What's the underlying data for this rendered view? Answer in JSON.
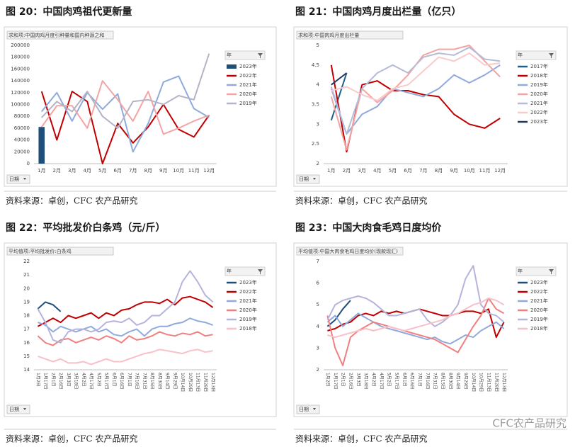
{
  "chart_data": [
    {
      "type": "line",
      "title": "图 20：中国肉鸡祖代更新量",
      "subtitle": "求和项:中国肉鸡月度引种量和国内种源之和",
      "legend_title": "年",
      "filter": "日期",
      "source": "资料来源：卓创，CFC 农产品研究",
      "categories": [
        "1月",
        "2月",
        "3月",
        "4月",
        "5月",
        "6月",
        "7月",
        "8月",
        "9月",
        "10月",
        "11月",
        "12月"
      ],
      "ylim": [
        0,
        200000
      ],
      "yticks": [
        0,
        20000,
        40000,
        60000,
        80000,
        100000,
        120000,
        140000,
        160000,
        180000,
        200000
      ],
      "grid": false,
      "series": [
        {
          "name": "2023年",
          "color": "#1f4e79",
          "mark": "bar",
          "values": [
            62000,
            null,
            null,
            null,
            null,
            null,
            null,
            null,
            null,
            null,
            null,
            null
          ]
        },
        {
          "name": "2022年",
          "color": "#c00000",
          "values": [
            122000,
            40000,
            122000,
            105000,
            0,
            68000,
            35000,
            62000,
            100000,
            58000,
            45000,
            82000
          ]
        },
        {
          "name": "2021年",
          "color": "#8faadc",
          "values": [
            88000,
            120000,
            72000,
            120000,
            92000,
            118000,
            20000,
            68000,
            138000,
            148000,
            93000,
            78000
          ]
        },
        {
          "name": "2020年",
          "color": "#f4a4a4",
          "values": [
            62000,
            98000,
            98000,
            60000,
            140000,
            108000,
            72000,
            122000,
            50000,
            60000,
            72000,
            82000
          ]
        },
        {
          "name": "2019年",
          "color": "#b4b4c8",
          "values": [
            78000,
            105000,
            88000,
            122000,
            80000,
            60000,
            105000,
            108000,
            100000,
            115000,
            108000,
            186000
          ]
        }
      ]
    },
    {
      "type": "line",
      "title": "图 21：中国肉鸡月度出栏量（亿只）",
      "subtitle": "求和项:中国肉鸡月度出栏量",
      "legend_title": "年",
      "filter": "日期",
      "source": "资料来源：卓创，CFC 农产品研究",
      "categories": [
        "1月",
        "2月",
        "3月",
        "4月",
        "5月",
        "6月",
        "7月",
        "8月",
        "9月",
        "10月",
        "11月",
        "12月"
      ],
      "ylim": [
        2,
        5
      ],
      "yticks": [
        2,
        2.5,
        3,
        3.5,
        4,
        4.5,
        5
      ],
      "grid": false,
      "series": [
        {
          "name": "2017年",
          "color": "#1f5f8b",
          "values": [
            3.1,
            4.3,
            null,
            null,
            null,
            null,
            null,
            null,
            null,
            null,
            null,
            null
          ]
        },
        {
          "name": "2018年",
          "color": "#c00000",
          "values": [
            4.5,
            2.3,
            4.0,
            4.1,
            3.85,
            3.85,
            3.75,
            3.7,
            3.25,
            3.0,
            2.9,
            3.15
          ]
        },
        {
          "name": "2019年",
          "color": "#8faadc",
          "values": [
            3.9,
            2.75,
            3.25,
            3.45,
            3.9,
            3.8,
            3.7,
            3.9,
            4.25,
            4.05,
            4.25,
            4.5
          ]
        },
        {
          "name": "2020年",
          "color": "#f4a4a4",
          "values": [
            3.7,
            2.35,
            3.9,
            3.55,
            3.85,
            4.25,
            4.75,
            4.9,
            4.9,
            5.0,
            4.6,
            4.2
          ]
        },
        {
          "name": "2021年",
          "color": "#b4bcd8",
          "values": [
            3.95,
            2.75,
            3.9,
            4.3,
            4.5,
            4.3,
            4.7,
            4.8,
            4.75,
            4.95,
            4.65,
            4.6
          ]
        },
        {
          "name": "2022年",
          "color": "#f8cbcb",
          "values": [
            3.85,
            3.95,
            3.75,
            3.6,
            3.9,
            4.0,
            4.35,
            4.7,
            4.6,
            4.8,
            4.5,
            4.55
          ]
        },
        {
          "name": "2023年",
          "color": "#1f3864",
          "values": [
            4.0,
            4.3,
            null,
            null,
            null,
            null,
            null,
            null,
            null,
            null,
            null,
            null
          ]
        }
      ]
    },
    {
      "type": "line",
      "title": "图 22：平均批发价白条鸡（元/斤）",
      "subtitle": "平均值项:平均批发价:白条鸡",
      "legend_title": "年",
      "filter": "日期",
      "source": "资料来源：卓创，CFC 农产品研究",
      "categories": [
        "1月2日",
        "1月17日",
        "2月1日",
        "2月16日",
        "3月3日",
        "3月18日",
        "4月2日",
        "4月17日",
        "5月2日",
        "5月17日",
        "6月1日",
        "6月16日",
        "7月1日",
        "7月16日",
        "7月31日",
        "8月15日",
        "8月30日",
        "9月14日",
        "9月29日",
        "10月14日",
        "10月29日",
        "11月13日",
        "11月28日",
        "12月13日"
      ],
      "ylim": [
        14,
        22
      ],
      "yticks": [
        14,
        15,
        16,
        17,
        18,
        19,
        20,
        21,
        22
      ],
      "grid": false,
      "series": [
        {
          "name": "2023年",
          "color": "#1f4e79",
          "values": [
            18.5,
            19,
            18.8,
            18.3,
            null,
            null,
            null,
            null,
            null,
            null,
            null,
            null,
            null,
            null,
            null,
            null,
            null,
            null,
            null,
            null,
            null,
            null,
            null,
            null
          ]
        },
        {
          "name": "2022年",
          "color": "#c00000",
          "values": [
            17.2,
            17.5,
            17.8,
            17.5,
            18,
            17.8,
            18,
            18.2,
            17.8,
            18.2,
            18,
            18.4,
            18.5,
            18.8,
            19,
            19,
            18.9,
            19.2,
            18.8,
            19.3,
            19.4,
            19.2,
            19,
            18.6
          ]
        },
        {
          "name": "2021年",
          "color": "#8faadc",
          "values": [
            17.5,
            17.3,
            16.8,
            17.2,
            17,
            16.8,
            17,
            17.2,
            16.8,
            17,
            16.6,
            16.5,
            16.8,
            17,
            16.5,
            17,
            17.2,
            17.2,
            17.4,
            17.5,
            17.8,
            17.6,
            17.5,
            17.3
          ]
        },
        {
          "name": "2020年",
          "color": "#f08080",
          "values": [
            16.5,
            16,
            15.8,
            16.2,
            16.3,
            16,
            16.2,
            16.4,
            16.2,
            16.5,
            16.3,
            16,
            16.5,
            16.2,
            16.3,
            16.5,
            16.8,
            16.6,
            16.5,
            16.7,
            16.6,
            16.8,
            16.5,
            16.6
          ]
        },
        {
          "name": "2019年",
          "color": "#b4b4dc",
          "values": [
            18.5,
            17.5,
            16.2,
            16,
            16.8,
            17,
            17,
            16.8,
            17,
            17.5,
            17.6,
            17.5,
            17.8,
            17.3,
            17.5,
            18,
            18,
            18.5,
            19,
            20.5,
            21.3,
            20.5,
            19.5,
            19
          ]
        },
        {
          "name": "2018年",
          "color": "#f8c0c8",
          "values": [
            15,
            14.8,
            14.6,
            14.8,
            14.5,
            14.5,
            14.6,
            14.4,
            14.6,
            14.8,
            14.6,
            14.6,
            14.8,
            15,
            15.2,
            15.3,
            15.5,
            15.4,
            15.3,
            15.2,
            15.4,
            15.5,
            15.3,
            15.4
          ]
        }
      ]
    },
    {
      "type": "line",
      "title": "图 23：中国大肉食毛鸡日度均价",
      "subtitle": "平均值项:中国大肉食毛鸡日度均价(现款现汇)",
      "legend_title": "年",
      "filter": "日期",
      "source": "资料来源：卓创，CFC 农产品研究",
      "categories": [
        "1月2日",
        "1月17日",
        "2月1日",
        "2月16日",
        "3月3日",
        "3月18日",
        "4月2日",
        "4月17日",
        "5月2日",
        "5月17日",
        "6月1日",
        "6月16日",
        "7月1日",
        "7月16日",
        "7月31日",
        "8月15日",
        "8月30日",
        "9月14日",
        "9月29日",
        "10月14日",
        "10月29日",
        "11月13日",
        "11月28日",
        "12月13日"
      ],
      "ylim": [
        2,
        7
      ],
      "yticks": [
        2,
        3,
        4,
        5,
        6,
        7
      ],
      "grid": false,
      "series": [
        {
          "name": "2023年",
          "color": "#1f4e79",
          "values": [
            4,
            4.3,
            4.8,
            5.2,
            null,
            null,
            null,
            null,
            null,
            null,
            null,
            null,
            null,
            null,
            null,
            null,
            null,
            null,
            null,
            null,
            null,
            null,
            null,
            null
          ]
        },
        {
          "name": "2022年",
          "color": "#c00000",
          "values": [
            3.8,
            3.9,
            4.1,
            4.2,
            4.5,
            4.6,
            4.5,
            4.7,
            4.6,
            4.7,
            4.6,
            4.7,
            4.8,
            4.7,
            4.6,
            4.5,
            4.5,
            4.6,
            4.7,
            4.7,
            4.6,
            4.8,
            3.5,
            4.2
          ]
        },
        {
          "name": "2021年",
          "color": "#8faadc",
          "values": [
            4.2,
            4.5,
            4.0,
            4.3,
            4.6,
            4.4,
            4.2,
            4.0,
            3.9,
            3.8,
            3.7,
            3.6,
            3.5,
            3.4,
            3.5,
            3.3,
            3.2,
            3.4,
            3.6,
            3.5,
            3.8,
            4.0,
            4.2,
            3.9
          ]
        },
        {
          "name": "2020年",
          "color": "#f08080",
          "values": [
            4.5,
            3.0,
            2.2,
            3.5,
            3.8,
            4.0,
            4.2,
            4.1,
            4.0,
            3.9,
            3.8,
            3.7,
            3.6,
            3.5,
            3.4,
            3.2,
            3.0,
            2.8,
            3.4,
            4.0,
            4.5,
            5.3,
            4.8,
            4.6
          ]
        },
        {
          "name": "2019年",
          "color": "#b4b4dc",
          "values": [
            4.3,
            5.0,
            5.2,
            5.3,
            5.4,
            5.3,
            5.1,
            4.8,
            4.5,
            4.5,
            4.6,
            4.7,
            4.8,
            4.3,
            4.0,
            4.2,
            4.5,
            5.0,
            6.2,
            6.8,
            5.0,
            4.6,
            4.5,
            4.2
          ]
        },
        {
          "name": "2018年",
          "color": "#f8c0c8",
          "values": [
            3.6,
            3.5,
            3.6,
            3.7,
            3.8,
            3.9,
            3.8,
            3.9,
            4.0,
            3.9,
            3.8,
            3.9,
            4.0,
            4.1,
            4.2,
            4.3,
            4.5,
            4.6,
            4.8,
            5.0,
            5.1,
            5.3,
            5.2,
            5.0
          ]
        }
      ]
    }
  ],
  "watermark": "CFC农产品研究"
}
